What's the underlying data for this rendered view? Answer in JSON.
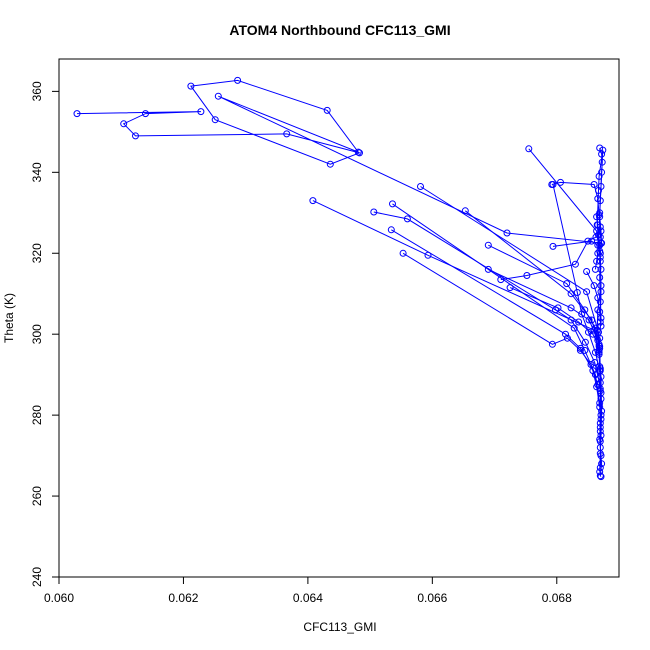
{
  "chart_data": {
    "type": "line",
    "title": "ATOM4 Northbound CFC113_GMI",
    "xlabel": "CFC113_GMI",
    "ylabel": "Theta (K)",
    "xlim": [
      0.06,
      0.069
    ],
    "ylim": [
      240,
      368
    ],
    "x_ticks": [
      "0.060",
      "0.062",
      "0.064",
      "0.066",
      "0.068"
    ],
    "y_ticks": [
      "240",
      "260",
      "280",
      "300",
      "320",
      "340",
      "360"
    ],
    "grid": false,
    "marker": "open-circle",
    "color": "#0000ff",
    "series": [
      {
        "points": [
          [
            0.06029,
            354.5
          ],
          [
            0.06228,
            355.0
          ],
          [
            0.06139,
            354.5
          ],
          [
            0.06104,
            352.0
          ],
          [
            0.06123,
            349.0
          ],
          [
            0.06366,
            349.5
          ],
          [
            0.06483,
            344.8
          ],
          [
            0.06436,
            342.0
          ],
          [
            0.06251,
            353.0
          ],
          [
            0.06212,
            361.3
          ],
          [
            0.06287,
            362.7
          ],
          [
            0.06431,
            355.3
          ],
          [
            0.06481,
            345.0
          ],
          [
            0.06256,
            358.8
          ],
          [
            0.0672,
            325.0
          ],
          [
            0.06871,
            322.5
          ],
          [
            0.06869,
            330.0
          ],
          [
            0.06874,
            345.5
          ],
          [
            0.06868,
            339.0
          ],
          [
            0.06867,
            335.5
          ],
          [
            0.06865,
            327.0
          ],
          [
            0.0687,
            318.0
          ],
          [
            0.06871,
            312.0
          ],
          [
            0.06866,
            306.0
          ],
          [
            0.06865,
            301.0
          ],
          [
            0.06869,
            297.0
          ],
          [
            0.0687,
            291.0
          ],
          [
            0.0687,
            286.0
          ],
          [
            0.06871,
            280.0
          ],
          [
            0.0687,
            276.0
          ],
          [
            0.0687,
            272.0
          ],
          [
            0.06872,
            268.0
          ],
          [
            0.0687,
            265.0
          ],
          [
            0.06871,
            264.8
          ]
        ]
      },
      {
        "points": [
          [
            0.06408,
            333.0
          ],
          [
            0.06593,
            319.5
          ],
          [
            0.0686,
            301.0
          ],
          [
            0.06868,
            295.5
          ],
          [
            0.06871,
            289.5
          ],
          [
            0.06872,
            281.0
          ],
          [
            0.06871,
            275.0
          ],
          [
            0.0687,
            270.5
          ],
          [
            0.06869,
            266.0
          ]
        ]
      },
      {
        "points": [
          [
            0.06581,
            336.5
          ],
          [
            0.06848,
            310.5
          ],
          [
            0.06867,
            300.5
          ],
          [
            0.06868,
            296.0
          ],
          [
            0.0687,
            286.5
          ],
          [
            0.06871,
            279.0
          ],
          [
            0.0687,
            273.5
          ]
        ]
      },
      {
        "points": [
          [
            0.06536,
            332.2
          ],
          [
            0.06828,
            301.5
          ],
          [
            0.06845,
            296.0
          ],
          [
            0.06862,
            290.0
          ],
          [
            0.06869,
            283.0
          ],
          [
            0.0687,
            277.0
          ]
        ]
      },
      {
        "points": [
          [
            0.06506,
            330.2
          ],
          [
            0.0656,
            328.5
          ],
          [
            0.06798,
            306.0
          ],
          [
            0.06823,
            303.5
          ],
          [
            0.06846,
            298.0
          ],
          [
            0.06861,
            293.0
          ],
          [
            0.06867,
            289.0
          ],
          [
            0.06871,
            285.5
          ]
        ]
      },
      {
        "points": [
          [
            0.06534,
            325.8
          ],
          [
            0.06814,
            300.0
          ],
          [
            0.06838,
            296.5
          ],
          [
            0.06858,
            291.0
          ],
          [
            0.06864,
            287.0
          ],
          [
            0.06869,
            282.0
          ]
        ]
      },
      {
        "points": [
          [
            0.06553,
            320.0
          ],
          [
            0.06793,
            297.5
          ],
          [
            0.06817,
            299.0
          ],
          [
            0.06838,
            296.0
          ],
          [
            0.06855,
            292.5
          ],
          [
            0.06866,
            287.5
          ]
        ]
      },
      {
        "points": [
          [
            0.06653,
            330.5
          ],
          [
            0.06823,
            310.0
          ],
          [
            0.06856,
            303.5
          ],
          [
            0.06868,
            297.5
          ],
          [
            0.0687,
            291.5
          ]
        ]
      },
      {
        "points": [
          [
            0.0669,
            322.0
          ],
          [
            0.06816,
            312.5
          ],
          [
            0.06845,
            306.0
          ],
          [
            0.06862,
            301.5
          ],
          [
            0.06869,
            296.5
          ]
        ]
      },
      {
        "points": [
          [
            0.0669,
            316.0
          ],
          [
            0.06823,
            306.5
          ],
          [
            0.06852,
            303.5
          ],
          [
            0.06866,
            298.5
          ]
        ]
      },
      {
        "points": [
          [
            0.06725,
            311.5
          ],
          [
            0.06802,
            306.5
          ],
          [
            0.06835,
            303.0
          ],
          [
            0.06858,
            300.0
          ],
          [
            0.06868,
            297.0
          ]
        ]
      },
      {
        "points": [
          [
            0.0671,
            313.5
          ],
          [
            0.06752,
            314.5
          ],
          [
            0.0683,
            317.3
          ],
          [
            0.0685,
            323.0
          ],
          [
            0.06863,
            324.0
          ],
          [
            0.0687,
            326.5
          ]
        ]
      },
      {
        "points": [
          [
            0.06755,
            345.8
          ],
          [
            0.06864,
            325.5
          ],
          [
            0.0687,
            319.0
          ],
          [
            0.06871,
            310.5
          ],
          [
            0.0687,
            303.0
          ]
        ]
      },
      {
        "points": [
          [
            0.06792,
            337.0
          ],
          [
            0.06806,
            337.5
          ],
          [
            0.0686,
            337.0
          ],
          [
            0.06866,
            333.5
          ],
          [
            0.06868,
            329.5
          ],
          [
            0.0687,
            324.0
          ]
        ]
      },
      {
        "points": [
          [
            0.06794,
            321.7
          ],
          [
            0.06856,
            323.0
          ],
          [
            0.06866,
            322.0
          ],
          [
            0.06869,
            320.5
          ],
          [
            0.06871,
            316.0
          ]
        ]
      },
      {
        "points": [
          [
            0.06794,
            337.0
          ],
          [
            0.06833,
            310.3
          ],
          [
            0.0684,
            305.0
          ],
          [
            0.06851,
            300.5
          ],
          [
            0.06862,
            295.5
          ],
          [
            0.06869,
            291.0
          ]
        ]
      },
      {
        "points": [
          [
            0.06848,
            315.5
          ],
          [
            0.0686,
            312.0
          ],
          [
            0.06866,
            309.0
          ],
          [
            0.06869,
            305.5
          ],
          [
            0.06871,
            302.0
          ]
        ]
      },
      {
        "points": [
          [
            0.06869,
            346.0
          ],
          [
            0.06872,
            344.5
          ],
          [
            0.06873,
            342.5
          ],
          [
            0.06872,
            340.0
          ],
          [
            0.06871,
            336.5
          ],
          [
            0.0687,
            333.0
          ],
          [
            0.06869,
            329.0
          ],
          [
            0.06871,
            325.5
          ],
          [
            0.06872,
            322.5
          ],
          [
            0.0687,
            320.0
          ],
          [
            0.06869,
            314.0
          ],
          [
            0.0687,
            308.0
          ],
          [
            0.06871,
            304.0
          ],
          [
            0.06869,
            299.0
          ],
          [
            0.06868,
            295.0
          ],
          [
            0.06869,
            292.0
          ],
          [
            0.0687,
            288.0
          ],
          [
            0.06871,
            284.0
          ],
          [
            0.0687,
            278.0
          ],
          [
            0.06869,
            274.0
          ],
          [
            0.06871,
            270.0
          ],
          [
            0.0687,
            267.0
          ]
        ]
      },
      {
        "points": [
          [
            0.06864,
            329.0
          ],
          [
            0.06866,
            327.0
          ],
          [
            0.06867,
            324.5
          ],
          [
            0.06869,
            322.0
          ],
          [
            0.06866,
            320.0
          ],
          [
            0.06864,
            318.0
          ],
          [
            0.06862,
            316.0
          ]
        ]
      }
    ]
  }
}
